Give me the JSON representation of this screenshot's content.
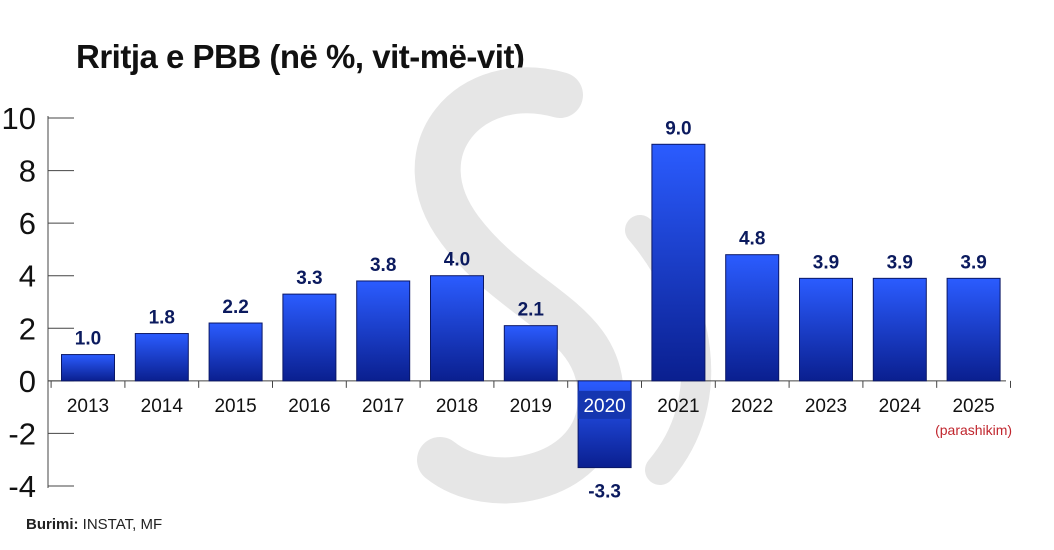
{
  "chart_data": {
    "type": "bar",
    "title": "Rritja e PBB (në %, vit-më-vit)",
    "categories": [
      "2013",
      "2014",
      "2015",
      "2016",
      "2017",
      "2018",
      "2019",
      "2020",
      "2021",
      "2022",
      "2023",
      "2024",
      "2025"
    ],
    "values": [
      1.0,
      1.8,
      2.2,
      3.3,
      3.8,
      4.0,
      2.1,
      -3.3,
      9.0,
      4.8,
      3.9,
      3.9,
      3.9
    ],
    "value_labels": [
      "1.0",
      "1.8",
      "2.2",
      "3.3",
      "3.8",
      "4.0",
      "2.1",
      "-3.3",
      "9.0",
      "4.8",
      "3.9",
      "3.9",
      "3.9"
    ],
    "highlight_category": "2020",
    "category_notes": [
      {
        "category": "2025",
        "text": "(parashikim)"
      }
    ],
    "y_ticks": [
      "10",
      "8",
      "6",
      "4",
      "2",
      "0",
      "-2",
      "-4"
    ],
    "y_tick_values": [
      10,
      8,
      6,
      4,
      2,
      0,
      -2,
      -4
    ],
    "ylim": [
      -4,
      10
    ],
    "grid": false,
    "legend": "none",
    "xlabel": "",
    "ylabel": "",
    "colors": {
      "bar_top": "#2b5cff",
      "bar_bottom": "#0a1f8f",
      "value_label": "#0b1a5e",
      "highlight_tick_bg": "#1536b0",
      "highlight_tick_text": "#ffffff",
      "note_text": "#c0262e",
      "watermark": "#e6e6e6"
    }
  },
  "source": {
    "label": "Burimi:",
    "text": " INSTAT, MF"
  }
}
